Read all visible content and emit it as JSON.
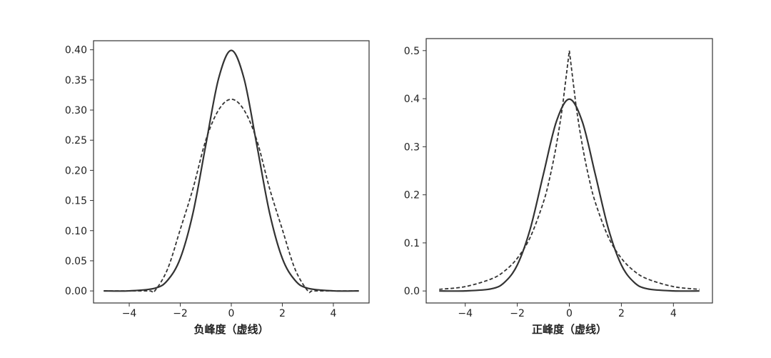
{
  "chart_data": [
    {
      "type": "line",
      "title": "",
      "xlabel": "负峰度（虚线）",
      "ylabel": "",
      "xlim": [
        -5.4,
        5.4
      ],
      "ylim": [
        -0.02,
        0.415
      ],
      "xticks": [
        -4,
        -2,
        0,
        2,
        4
      ],
      "xtick_labels": [
        "−4",
        "−2",
        "0",
        "2",
        "4"
      ],
      "yticks": [
        0.0,
        0.05,
        0.1,
        0.15,
        0.2,
        0.25,
        0.3,
        0.35,
        0.4
      ],
      "ytick_labels": [
        "0.00",
        "0.05",
        "0.10",
        "0.15",
        "0.20",
        "0.25",
        "0.30",
        "0.35",
        "0.40"
      ],
      "series": [
        {
          "style": "solid",
          "x": [
            -5,
            -4,
            -3,
            -2.5,
            -2,
            -1.5,
            -1,
            -0.5,
            0,
            0.5,
            1,
            1.5,
            2,
            2.5,
            3,
            4,
            5
          ],
          "y": [
            0.0,
            0.0001,
            0.0044,
            0.0175,
            0.054,
            0.1295,
            0.242,
            0.352,
            0.399,
            0.352,
            0.242,
            0.1295,
            0.054,
            0.0175,
            0.0044,
            0.0001,
            0.0
          ]
        },
        {
          "style": "dashed",
          "x": [
            -5,
            -4,
            -3.2,
            -3,
            -2.5,
            -2,
            -1.5,
            -1,
            -0.5,
            0,
            0.5,
            1,
            1.5,
            2,
            2.5,
            3,
            3.2,
            4,
            5
          ],
          "y": [
            0.0,
            0.0,
            0.0,
            0.0,
            0.036,
            0.102,
            0.17,
            0.25,
            0.3,
            0.318,
            0.3,
            0.25,
            0.17,
            0.102,
            0.036,
            0.0,
            0.0,
            0.0,
            0.0
          ]
        }
      ]
    },
    {
      "type": "line",
      "title": "",
      "xlabel": "正峰度（虚线）",
      "ylabel": "",
      "xlim": [
        -5.5,
        5.5
      ],
      "ylim": [
        -0.025,
        0.525
      ],
      "xticks": [
        -4,
        -2,
        0,
        2,
        4
      ],
      "xtick_labels": [
        "−4",
        "−2",
        "0",
        "2",
        "4"
      ],
      "yticks": [
        0.0,
        0.1,
        0.2,
        0.3,
        0.4,
        0.5
      ],
      "ytick_labels": [
        "0.0",
        "0.1",
        "0.2",
        "0.3",
        "0.4",
        "0.5"
      ],
      "series": [
        {
          "style": "solid",
          "x": [
            -5,
            -4,
            -3,
            -2.5,
            -2,
            -1.5,
            -1,
            -0.5,
            0,
            0.5,
            1,
            1.5,
            2,
            2.5,
            3,
            4,
            5
          ],
          "y": [
            0.0,
            0.0001,
            0.0044,
            0.0175,
            0.054,
            0.1295,
            0.242,
            0.352,
            0.399,
            0.352,
            0.242,
            0.1295,
            0.054,
            0.0175,
            0.0044,
            0.0001,
            0.0
          ]
        },
        {
          "style": "dashed",
          "x": [
            -5,
            -4,
            -3,
            -2.5,
            -2,
            -1.5,
            -1,
            -0.75,
            -0.5,
            -0.25,
            0,
            0.25,
            0.5,
            0.75,
            1,
            1.5,
            2,
            2.5,
            3,
            4,
            5
          ],
          "y": [
            0.0034,
            0.009,
            0.025,
            0.041,
            0.068,
            0.112,
            0.184,
            0.236,
            0.303,
            0.389,
            0.5,
            0.389,
            0.303,
            0.236,
            0.184,
            0.112,
            0.068,
            0.041,
            0.025,
            0.009,
            0.0034
          ]
        }
      ]
    }
  ]
}
